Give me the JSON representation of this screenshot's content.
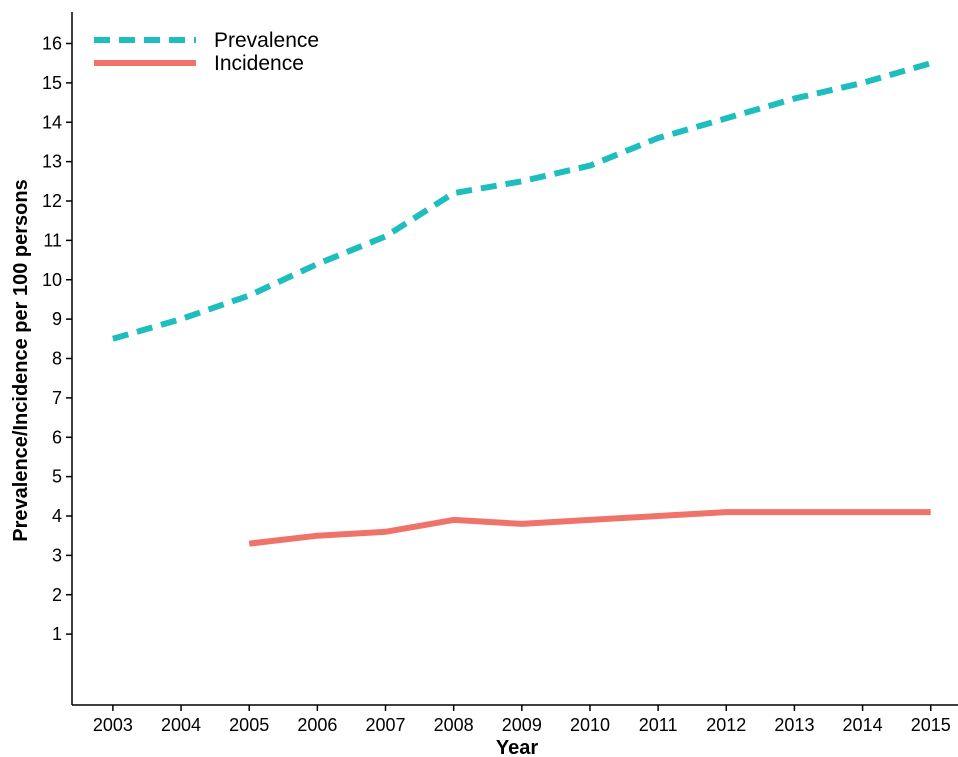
{
  "chart_data": {
    "type": "line",
    "xlabel": "Year",
    "ylabel": "Prevalence/Incidence per 100 persons",
    "x_ticks": [
      "2003",
      "2004",
      "2005",
      "2006",
      "2007",
      "2008",
      "2009",
      "2010",
      "2011",
      "2012",
      "2013",
      "2014",
      "2015"
    ],
    "y_ticks": [
      "1",
      "2",
      "3",
      "4",
      "5",
      "6",
      "7",
      "8",
      "9",
      "10",
      "11",
      "12",
      "13",
      "14",
      "15",
      "16"
    ],
    "xlim": [
      2002.4,
      2015.4
    ],
    "ylim": [
      -0.8,
      16.8
    ],
    "grid": false,
    "legend_position": "top-left",
    "series": [
      {
        "name": "Prevalence",
        "color": "#1ebebe",
        "style": "dashed",
        "x": [
          2003,
          2004,
          2005,
          2006,
          2007,
          2008,
          2009,
          2010,
          2011,
          2012,
          2013,
          2014,
          2015
        ],
        "y": [
          8.5,
          9.0,
          9.6,
          10.4,
          11.1,
          12.2,
          12.5,
          12.9,
          13.6,
          14.1,
          14.6,
          15.0,
          15.5
        ]
      },
      {
        "name": "Incidence",
        "color": "#f0736a",
        "style": "solid",
        "x": [
          2005,
          2006,
          2007,
          2008,
          2009,
          2010,
          2011,
          2012,
          2013,
          2014,
          2015
        ],
        "y": [
          3.3,
          3.5,
          3.6,
          3.9,
          3.8,
          3.9,
          4.0,
          4.1,
          4.1,
          4.1,
          4.1
        ]
      }
    ]
  }
}
